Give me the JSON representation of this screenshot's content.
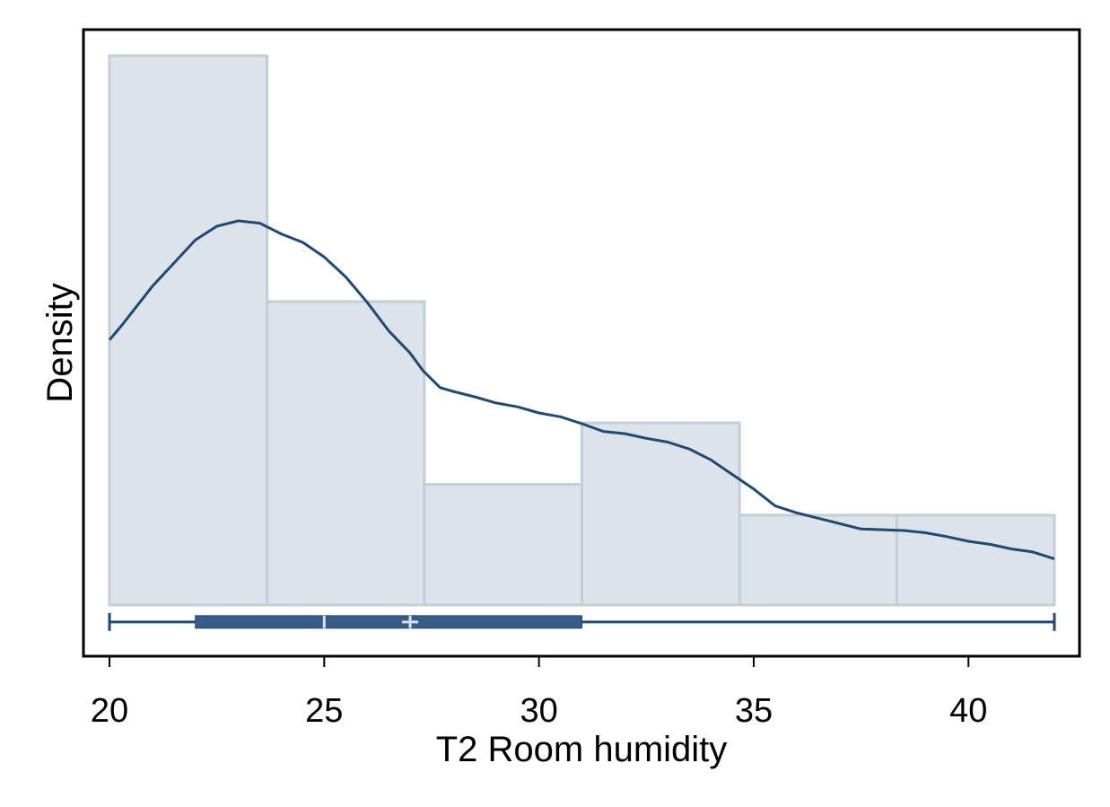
{
  "chart_data": {
    "type": "histogram",
    "xlabel": "T2 Room humidity",
    "ylabel": "Density",
    "xlim": [
      20,
      42
    ],
    "x_ticks": [
      20,
      25,
      30,
      35,
      40
    ],
    "y_ticks_shown": false,
    "grid": false,
    "bins": [
      {
        "x0": 20.0,
        "x1": 23.67,
        "density": 0.0715
      },
      {
        "x0": 23.67,
        "x1": 27.33,
        "density": 0.0395
      },
      {
        "x0": 27.33,
        "x1": 31.0,
        "density": 0.0157
      },
      {
        "x0": 31.0,
        "x1": 34.67,
        "density": 0.0237
      },
      {
        "x0": 34.67,
        "x1": 38.33,
        "density": 0.0117
      },
      {
        "x0": 38.33,
        "x1": 42.0,
        "density": 0.0117
      }
    ],
    "kde": {
      "x": [
        20,
        20.3,
        21,
        21.5,
        22,
        22.5,
        23,
        23.5,
        24,
        24.5,
        25,
        25.5,
        26,
        26.5,
        27,
        27.3,
        27.7,
        28,
        28.5,
        29,
        29.5,
        30,
        30.5,
        31,
        31.5,
        32,
        32.5,
        33,
        33.5,
        34,
        34.5,
        35,
        35.5,
        36,
        36.5,
        37,
        37.5,
        38,
        38.5,
        39,
        39.5,
        40,
        40.5,
        41,
        41.5,
        42
      ],
      "y": [
        0.0345,
        0.0365,
        0.0415,
        0.0445,
        0.0475,
        0.0493,
        0.05,
        0.0497,
        0.0483,
        0.0472,
        0.0453,
        0.0427,
        0.0394,
        0.0357,
        0.0328,
        0.0305,
        0.0283,
        0.0278,
        0.0271,
        0.0263,
        0.0258,
        0.025,
        0.0245,
        0.0236,
        0.0226,
        0.0223,
        0.0217,
        0.0212,
        0.0203,
        0.0189,
        0.017,
        0.0151,
        0.0129,
        0.012,
        0.0113,
        0.0106,
        0.0099,
        0.0098,
        0.0097,
        0.0094,
        0.0089,
        0.0083,
        0.0079,
        0.0073,
        0.0069,
        0.006
      ]
    },
    "ylim": [
      -0.0065,
      0.075
    ],
    "boxplot": {
      "whisker_low": 20,
      "q1": 22,
      "median": 25,
      "mean": 27,
      "q3": 31,
      "whisker_high": 42,
      "y_position": -0.0022
    },
    "colors": {
      "bar_fill": "#dde3ea",
      "bar_stroke": "#c3ced9",
      "line": "#1f4a73",
      "box_fill": "#365d87",
      "median_mark": "#d9dfe8",
      "axis": "#000000"
    }
  }
}
